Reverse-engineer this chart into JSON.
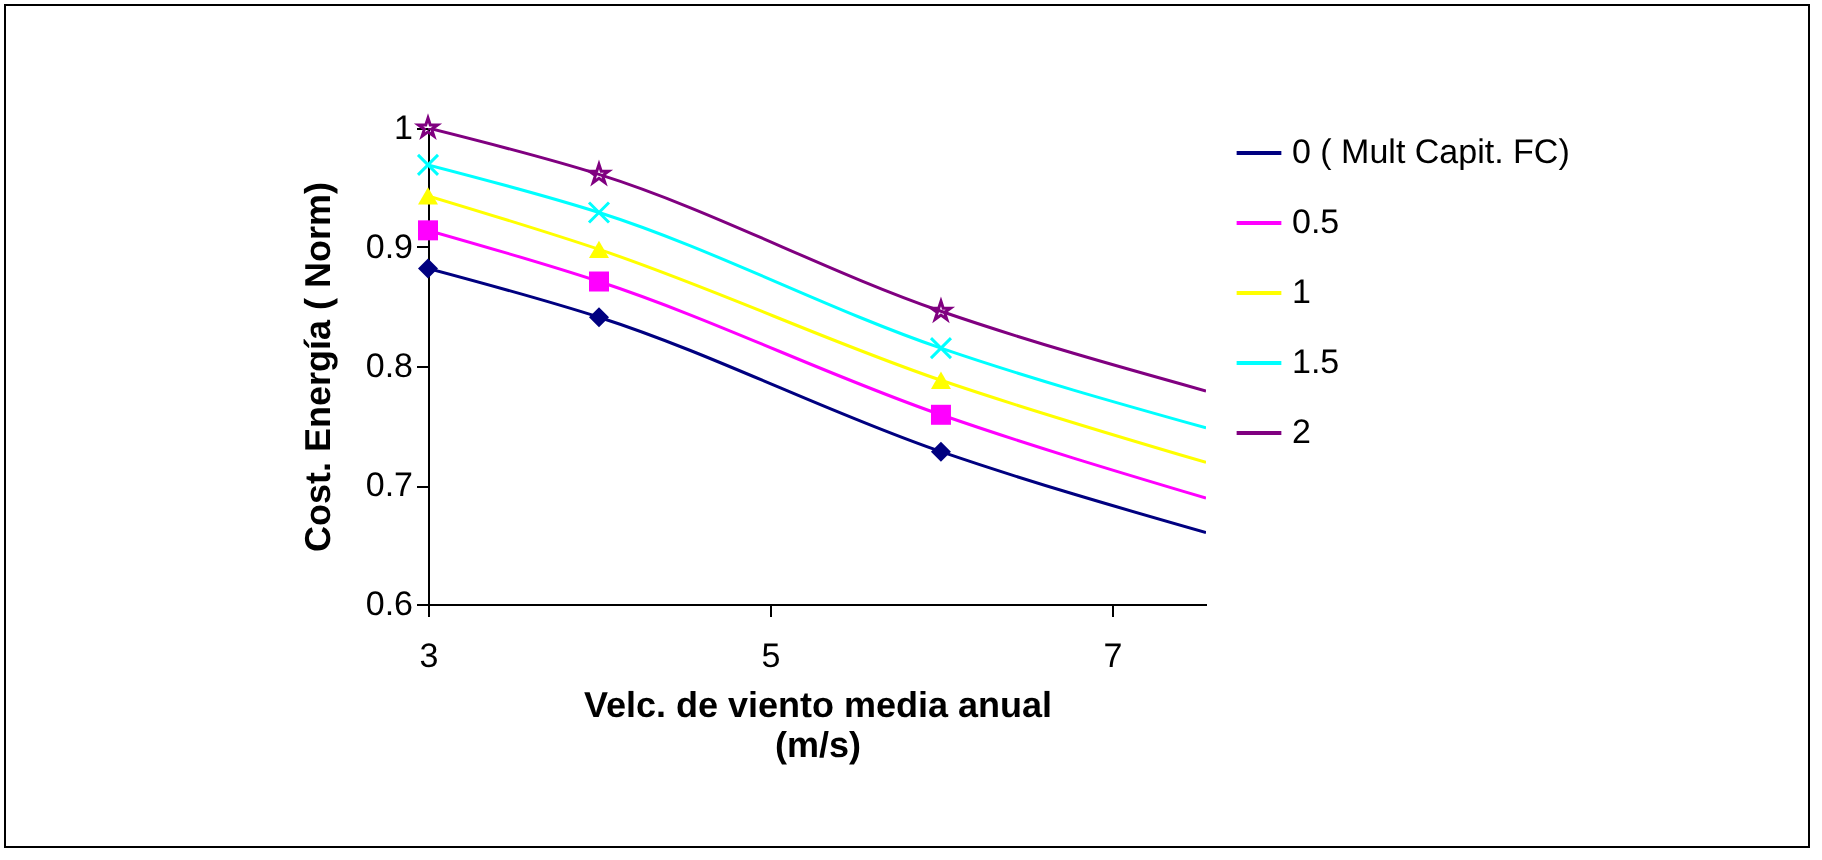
{
  "chart_data": {
    "type": "line",
    "xlabel": "Velc. de viento media anual (m/s)",
    "ylabel": "Cost. Energía ( Norm)",
    "x": [
      3,
      4,
      6,
      7.55
    ],
    "xlim": [
      3,
      7.55
    ],
    "xticks": [
      3,
      5,
      7
    ],
    "ylim": [
      0.6,
      1.0
    ],
    "yticks": [
      0.6,
      0.7,
      0.8,
      0.9,
      1
    ],
    "grid": false,
    "legend": "right",
    "line_style": "solid",
    "series": [
      {
        "name": "0 ( Mult Capit.  FC)",
        "color": "#000080",
        "marker": "diamond",
        "values": [
          0.882,
          0.841,
          0.728,
          0.66
        ]
      },
      {
        "name": "0.5",
        "color": "#ff00ff",
        "marker": "square",
        "values": [
          0.914,
          0.871,
          0.759,
          0.689
        ]
      },
      {
        "name": "1",
        "color": "#ffff00",
        "marker": "triangle",
        "values": [
          0.943,
          0.898,
          0.788,
          0.719
        ]
      },
      {
        "name": "1.5",
        "color": "#00ffff",
        "marker": "cross",
        "values": [
          0.969,
          0.929,
          0.815,
          0.748
        ]
      },
      {
        "name": "2",
        "color": "#800080",
        "marker": "star",
        "values": [
          1.0,
          0.961,
          0.846,
          0.779
        ]
      }
    ]
  }
}
